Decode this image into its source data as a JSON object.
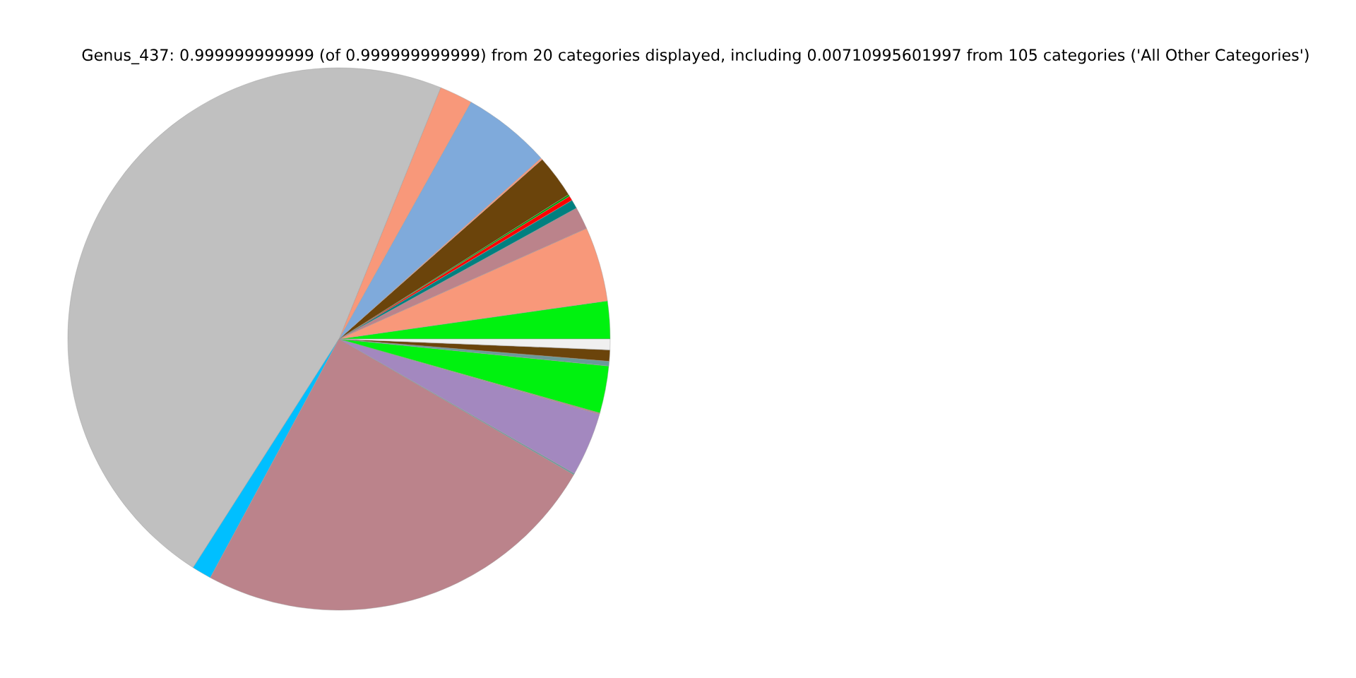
{
  "chart_data": {
    "type": "pie",
    "title": "Genus_437: 0.999999999999 (of 0.999999999999) from 20 categories displayed, including 0.00710995601997 from 105 categories ('All Other Categories')",
    "categories": [
      null,
      null,
      null,
      null,
      null,
      null,
      null,
      null,
      null,
      null,
      null,
      null,
      null,
      null,
      null,
      null,
      null,
      null,
      null,
      null
    ],
    "values": [
      2.25,
      4.44,
      1.33,
      0.53,
      0.28,
      0.11,
      2.58,
      0.11,
      5.28,
      1.97,
      47.08,
      1.17,
      24.53,
      0.08,
      3.78,
      0.08,
      2.81,
      0.28,
      0.67,
      0.64
    ],
    "colors": [
      "#00f20f",
      "#f8987a",
      "#bb838b",
      "#008080",
      "#ff0000",
      "#00a000",
      "#6b440b",
      "#f8987a",
      "#7faadb",
      "#f8987a",
      "#c0c0c0",
      "#00bfff",
      "#bb838b",
      "#6a9a9a",
      "#a388bf",
      "#bb838b",
      "#00f20f",
      "#6a9a9a",
      "#6b440b",
      "#f0f0f0"
    ]
  }
}
